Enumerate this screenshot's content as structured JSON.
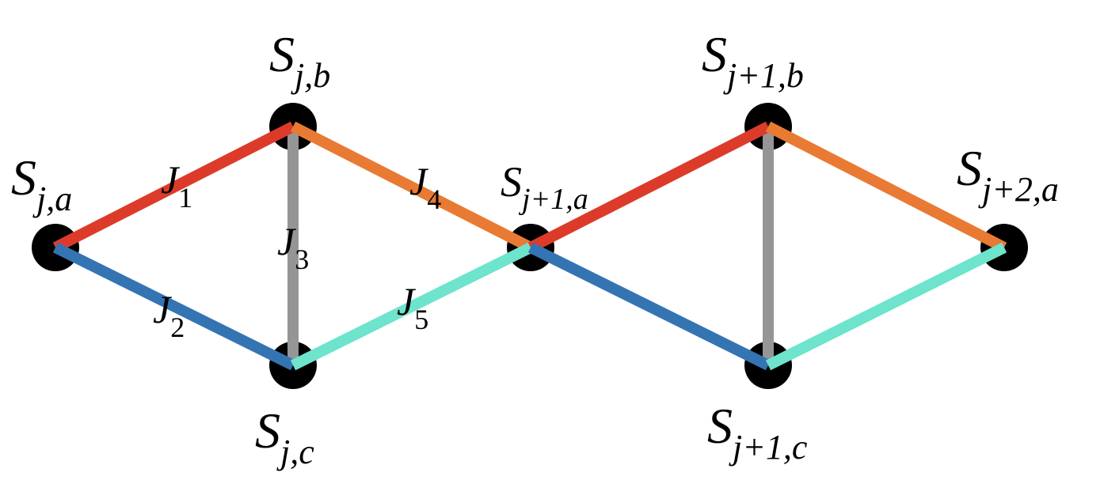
{
  "nodes": [
    {
      "id": "Sja",
      "base": "S",
      "sub": "j,a"
    },
    {
      "id": "Sjb",
      "base": "S",
      "sub": "j,b"
    },
    {
      "id": "Sjc",
      "base": "S",
      "sub": "j,c"
    },
    {
      "id": "Sj1a",
      "base": "S",
      "sub": "j+1,a"
    },
    {
      "id": "Sj1b",
      "base": "S",
      "sub": "j+1,b"
    },
    {
      "id": "Sj1c",
      "base": "S",
      "sub": "j+1,c"
    },
    {
      "id": "Sj2a",
      "base": "S",
      "sub": "j+2,a"
    }
  ],
  "couplings": [
    {
      "id": "J1",
      "base": "J",
      "sub": "1",
      "color": "#dd3b2a"
    },
    {
      "id": "J2",
      "base": "J",
      "sub": "2",
      "color": "#3474b3"
    },
    {
      "id": "J3",
      "base": "J",
      "sub": "3",
      "color": "#959595"
    },
    {
      "id": "J4",
      "base": "J",
      "sub": "4",
      "color": "#e97a34"
    },
    {
      "id": "J5",
      "base": "J",
      "sub": "5",
      "color": "#6ee4cc"
    }
  ],
  "edges": [
    {
      "from": "Sja",
      "to": "Sjb",
      "coupling": "J1"
    },
    {
      "from": "Sja",
      "to": "Sjc",
      "coupling": "J2"
    },
    {
      "from": "Sjb",
      "to": "Sjc",
      "coupling": "J3"
    },
    {
      "from": "Sjb",
      "to": "Sj1a",
      "coupling": "J4"
    },
    {
      "from": "Sjc",
      "to": "Sj1a",
      "coupling": "J5"
    },
    {
      "from": "Sj1a",
      "to": "Sj1b",
      "coupling": "J1"
    },
    {
      "from": "Sj1a",
      "to": "Sj1c",
      "coupling": "J2"
    },
    {
      "from": "Sj1b",
      "to": "Sj1c",
      "coupling": "J3"
    },
    {
      "from": "Sj1b",
      "to": "Sj2a",
      "coupling": "J4"
    },
    {
      "from": "Sj1c",
      "to": "Sj2a",
      "coupling": "J5"
    }
  ],
  "node_color": "#000000"
}
